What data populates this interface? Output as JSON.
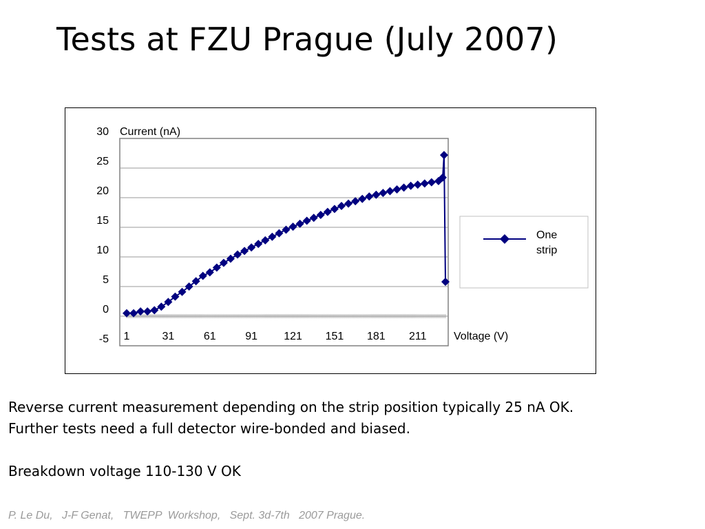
{
  "slide": {
    "title": "Tests at FZU Prague (July 2007)",
    "body_lines": [
      "Reverse current measurement depending on the strip position typically 25 nA  OK.",
      "Further tests need a full detector wire-bonded and biased.",
      "Breakdown voltage 110-130 V   OK"
    ],
    "footer": "P. Le Du,   J-F Genat,   TWEPP  Workshop,   Sept. 3d-7th   2007 Prague."
  },
  "chart_data": {
    "type": "line",
    "ylabel": "Current (nA)",
    "xlabel": "Voltage (V)",
    "ylim": [
      -5,
      30
    ],
    "yticks": [
      "30",
      "25",
      "20",
      "15",
      "10",
      "5",
      "0",
      "-5"
    ],
    "xtick_labels": [
      "1",
      "31",
      "61",
      "91",
      "121",
      "151",
      "181",
      "211"
    ],
    "grid": "horizontal",
    "legend_placement": "right",
    "series": [
      {
        "name": "One strip",
        "color": "#000080",
        "marker": "diamond",
        "x": [
          1,
          6,
          11,
          16,
          21,
          26,
          31,
          36,
          41,
          46,
          51,
          56,
          61,
          66,
          71,
          76,
          81,
          86,
          91,
          96,
          101,
          106,
          111,
          116,
          121,
          126,
          131,
          136,
          141,
          146,
          151,
          156,
          161,
          166,
          171,
          176,
          181,
          186,
          191,
          196,
          201,
          206,
          211,
          216,
          221,
          226,
          229,
          230,
          231
        ],
        "y": [
          0.5,
          0.5,
          0.8,
          0.8,
          1.0,
          1.6,
          2.4,
          3.3,
          4.1,
          5.0,
          5.9,
          6.8,
          7.4,
          8.2,
          9.0,
          9.7,
          10.4,
          11.0,
          11.6,
          12.2,
          12.8,
          13.4,
          14.0,
          14.6,
          15.1,
          15.6,
          16.1,
          16.6,
          17.1,
          17.6,
          18.1,
          18.6,
          19.0,
          19.4,
          19.8,
          20.2,
          20.5,
          20.8,
          21.1,
          21.4,
          21.7,
          22.0,
          22.2,
          22.4,
          22.6,
          22.8,
          23.4,
          27.2,
          5.8
        ]
      }
    ]
  }
}
